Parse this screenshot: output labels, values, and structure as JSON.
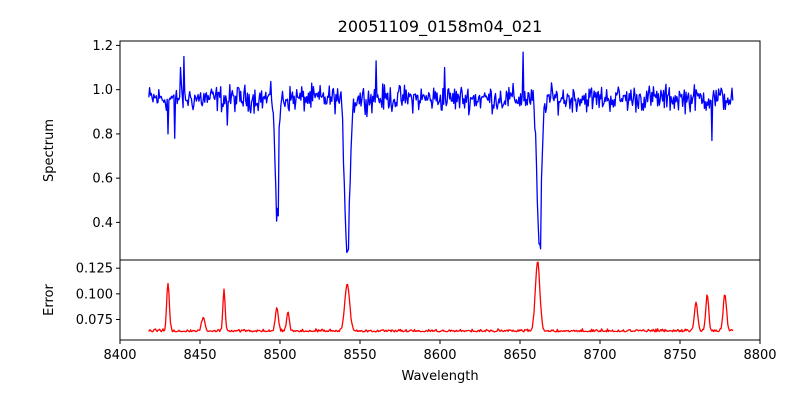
{
  "chart_data": [
    {
      "type": "line",
      "title": "20051109_0158m04_021",
      "xlabel": "",
      "ylabel": "Spectrum",
      "xlim": [
        8400,
        8800
      ],
      "ylim": [
        0.23,
        1.22
      ],
      "yticks": [
        0.4,
        0.6,
        0.8,
        1.0,
        1.2
      ],
      "ytick_labels": [
        "0.4",
        "0.6",
        "0.8",
        "1.0",
        "1.2"
      ],
      "grid": false,
      "color": "#0000ff",
      "continuum": 0.96,
      "noise": 0.05,
      "x_range": [
        8418,
        8783
      ],
      "n_points": 700,
      "absorption_lines": [
        {
          "center": 8498,
          "depth": 0.53,
          "width": 1.0
        },
        {
          "center": 8542,
          "depth": 0.68,
          "width": 1.6
        },
        {
          "center": 8662,
          "depth": 0.68,
          "width": 1.4
        }
      ],
      "spikes": [
        {
          "x": 8430,
          "y": 0.8
        },
        {
          "x": 8434,
          "y": 0.78
        },
        {
          "x": 8438,
          "y": 1.1
        },
        {
          "x": 8440,
          "y": 1.15
        },
        {
          "x": 8467,
          "y": 0.84
        },
        {
          "x": 8499,
          "y": 0.43
        },
        {
          "x": 8543,
          "y": 0.28
        },
        {
          "x": 8560,
          "y": 1.13
        },
        {
          "x": 8603,
          "y": 1.1
        },
        {
          "x": 8652,
          "y": 1.17
        },
        {
          "x": 8663,
          "y": 0.28
        },
        {
          "x": 8770,
          "y": 0.77
        }
      ]
    },
    {
      "type": "line",
      "title": "",
      "xlabel": "Wavelength",
      "ylabel": "Error",
      "xlim": [
        8400,
        8800
      ],
      "ylim": [
        0.055,
        0.133
      ],
      "xticks": [
        8400,
        8450,
        8500,
        8550,
        8600,
        8650,
        8700,
        8750,
        8800
      ],
      "xtick_labels": [
        "8400",
        "8450",
        "8500",
        "8550",
        "8600",
        "8650",
        "8700",
        "8750",
        "8800"
      ],
      "yticks": [
        0.075,
        0.1,
        0.125
      ],
      "ytick_labels": [
        "0.075",
        "0.100",
        "0.125"
      ],
      "grid": false,
      "color": "#ff0000",
      "baseline": 0.063,
      "noise": 0.002,
      "x_range": [
        8418,
        8783
      ],
      "n_points": 700,
      "peaks": [
        {
          "center": 8430,
          "height": 0.11,
          "width": 0.8
        },
        {
          "center": 8452,
          "height": 0.076,
          "width": 1.0
        },
        {
          "center": 8465,
          "height": 0.103,
          "width": 0.7
        },
        {
          "center": 8498,
          "height": 0.086,
          "width": 0.9
        },
        {
          "center": 8505,
          "height": 0.082,
          "width": 0.8
        },
        {
          "center": 8542,
          "height": 0.109,
          "width": 1.5
        },
        {
          "center": 8661,
          "height": 0.13,
          "width": 1.4
        },
        {
          "center": 8760,
          "height": 0.091,
          "width": 1.0
        },
        {
          "center": 8767,
          "height": 0.098,
          "width": 0.9
        },
        {
          "center": 8778,
          "height": 0.099,
          "width": 1.0
        }
      ]
    }
  ]
}
